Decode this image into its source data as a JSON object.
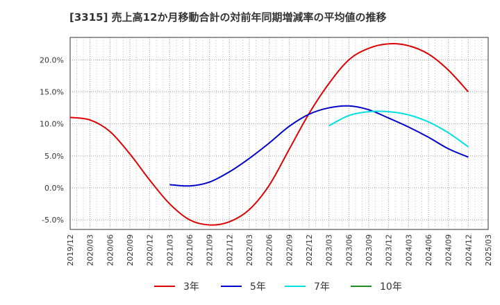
{
  "chart_data": {
    "type": "line",
    "title": "[3315]  売上高12か月移動合計の対前年同期増減率の平均値の推移",
    "xlabel": "",
    "ylabel": "",
    "ylim": [
      -6.5,
      23.5
    ],
    "y_ticks": [
      20.0,
      15.0,
      10.0,
      5.0,
      0.0,
      -5.0
    ],
    "y_tick_labels": [
      "20.0%",
      "15.0%",
      "10.0%",
      "5.0%",
      "0.0%",
      "-5.0%"
    ],
    "x_ticks": [
      "2019/12",
      "2020/03",
      "2020/06",
      "2020/09",
      "2020/12",
      "2021/03",
      "2021/06",
      "2021/09",
      "2021/12",
      "2022/03",
      "2022/06",
      "2022/09",
      "2022/12",
      "2023/03",
      "2023/06",
      "2023/09",
      "2023/12",
      "2024/03",
      "2024/06",
      "2024/09",
      "2024/12",
      "2025/03"
    ],
    "grid": true,
    "legend_position": "bottom",
    "series": [
      {
        "name": "3年",
        "color": "#dd0000",
        "x": [
          "2019/12",
          "2020/03",
          "2020/06",
          "2020/09",
          "2020/12",
          "2021/03",
          "2021/06",
          "2021/09",
          "2021/12",
          "2022/03",
          "2022/06",
          "2022/09",
          "2022/12",
          "2023/03",
          "2023/06",
          "2023/09",
          "2023/12",
          "2024/03",
          "2024/06",
          "2024/09",
          "2024/12"
        ],
        "values": [
          11.0,
          10.6,
          8.8,
          5.3,
          1.2,
          -2.5,
          -5.0,
          -5.8,
          -5.3,
          -3.4,
          0.4,
          6.0,
          11.6,
          16.3,
          20.0,
          21.8,
          22.5,
          22.2,
          20.9,
          18.4,
          15.0
        ]
      },
      {
        "name": "5年",
        "color": "#0000cc",
        "x": [
          "2021/03",
          "2021/06",
          "2021/09",
          "2021/12",
          "2022/03",
          "2022/06",
          "2022/09",
          "2022/12",
          "2023/03",
          "2023/06",
          "2023/09",
          "2023/12",
          "2024/03",
          "2024/06",
          "2024/09",
          "2024/12"
        ],
        "values": [
          0.5,
          0.3,
          0.9,
          2.5,
          4.6,
          7.0,
          9.6,
          11.5,
          12.5,
          12.8,
          12.2,
          10.9,
          9.5,
          7.9,
          6.1,
          4.8
        ]
      },
      {
        "name": "7年",
        "color": "#00e0e0",
        "x": [
          "2023/03",
          "2023/06",
          "2023/09",
          "2023/12",
          "2024/03",
          "2024/06",
          "2024/09",
          "2024/12"
        ],
        "values": [
          9.7,
          11.3,
          11.9,
          11.9,
          11.4,
          10.3,
          8.6,
          6.4
        ]
      },
      {
        "name": "10年",
        "color": "#228b22",
        "x": [],
        "values": []
      }
    ]
  }
}
